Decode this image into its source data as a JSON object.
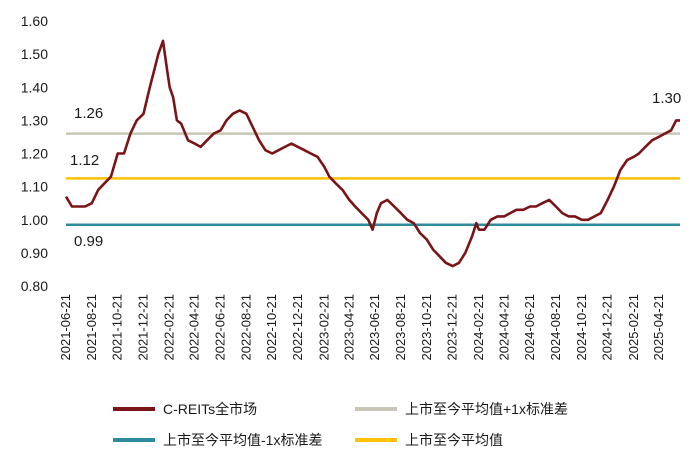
{
  "chart_data": {
    "type": "line",
    "ylim": [
      0.8,
      1.6
    ],
    "yticks": [
      "0.80",
      "0.90",
      "1.00",
      "1.10",
      "1.20",
      "1.30",
      "1.40",
      "1.50",
      "1.60"
    ],
    "xticks": [
      "2021-06-21",
      "2021-08-21",
      "2021-10-21",
      "2021-12-21",
      "2022-02-21",
      "2022-04-21",
      "2022-06-21",
      "2022-08-21",
      "2022-10-21",
      "2022-12-21",
      "2023-02-21",
      "2023-04-21",
      "2023-06-21",
      "2023-08-21",
      "2023-10-21",
      "2023-12-21",
      "2024-02-21",
      "2024-04-21",
      "2024-06-21",
      "2024-08-21",
      "2024-10-21",
      "2024-12-21",
      "2025-02-21",
      "2025-04-21"
    ],
    "x_range": [
      "2021-06-21",
      "2025-06-10"
    ],
    "grid": false,
    "legend_position": "bottom",
    "series": [
      {
        "name": "C-REITs全市场",
        "color": "#7b1416",
        "points": [
          [
            "2021-06-21",
            1.07
          ],
          [
            "2021-07-05",
            1.04
          ],
          [
            "2021-07-20",
            1.04
          ],
          [
            "2021-08-05",
            1.04
          ],
          [
            "2021-08-21",
            1.05
          ],
          [
            "2021-09-05",
            1.09
          ],
          [
            "2021-09-20",
            1.11
          ],
          [
            "2021-10-05",
            1.13
          ],
          [
            "2021-10-21",
            1.2
          ],
          [
            "2021-11-05",
            1.2
          ],
          [
            "2021-11-20",
            1.26
          ],
          [
            "2021-12-05",
            1.3
          ],
          [
            "2021-12-21",
            1.32
          ],
          [
            "2022-01-05",
            1.4
          ],
          [
            "2022-01-15",
            1.45
          ],
          [
            "2022-01-25",
            1.5
          ],
          [
            "2022-02-05",
            1.54
          ],
          [
            "2022-02-15",
            1.45
          ],
          [
            "2022-02-21",
            1.4
          ],
          [
            "2022-03-01",
            1.37
          ],
          [
            "2022-03-10",
            1.3
          ],
          [
            "2022-03-20",
            1.29
          ],
          [
            "2022-04-05",
            1.24
          ],
          [
            "2022-04-21",
            1.23
          ],
          [
            "2022-05-05",
            1.22
          ],
          [
            "2022-05-20",
            1.24
          ],
          [
            "2022-06-05",
            1.26
          ],
          [
            "2022-06-21",
            1.27
          ],
          [
            "2022-07-05",
            1.3
          ],
          [
            "2022-07-20",
            1.32
          ],
          [
            "2022-08-05",
            1.33
          ],
          [
            "2022-08-21",
            1.32
          ],
          [
            "2022-09-05",
            1.28
          ],
          [
            "2022-09-20",
            1.24
          ],
          [
            "2022-10-05",
            1.21
          ],
          [
            "2022-10-21",
            1.2
          ],
          [
            "2022-11-05",
            1.21
          ],
          [
            "2022-11-20",
            1.22
          ],
          [
            "2022-12-05",
            1.23
          ],
          [
            "2022-12-21",
            1.22
          ],
          [
            "2023-01-05",
            1.21
          ],
          [
            "2023-01-20",
            1.2
          ],
          [
            "2023-02-05",
            1.19
          ],
          [
            "2023-02-21",
            1.16
          ],
          [
            "2023-03-05",
            1.13
          ],
          [
            "2023-03-20",
            1.11
          ],
          [
            "2023-04-05",
            1.09
          ],
          [
            "2023-04-21",
            1.06
          ],
          [
            "2023-05-05",
            1.04
          ],
          [
            "2023-05-20",
            1.02
          ],
          [
            "2023-06-05",
            1.0
          ],
          [
            "2023-06-15",
            0.97
          ],
          [
            "2023-06-25",
            1.02
          ],
          [
            "2023-07-05",
            1.05
          ],
          [
            "2023-07-20",
            1.06
          ],
          [
            "2023-08-05",
            1.04
          ],
          [
            "2023-08-21",
            1.02
          ],
          [
            "2023-09-05",
            1.0
          ],
          [
            "2023-09-20",
            0.99
          ],
          [
            "2023-10-05",
            0.96
          ],
          [
            "2023-10-21",
            0.94
          ],
          [
            "2023-11-05",
            0.91
          ],
          [
            "2023-11-20",
            0.89
          ],
          [
            "2023-12-05",
            0.87
          ],
          [
            "2023-12-21",
            0.86
          ],
          [
            "2024-01-05",
            0.87
          ],
          [
            "2024-01-20",
            0.9
          ],
          [
            "2024-02-05",
            0.95
          ],
          [
            "2024-02-15",
            0.99
          ],
          [
            "2024-02-21",
            0.97
          ],
          [
            "2024-03-05",
            0.97
          ],
          [
            "2024-03-20",
            1.0
          ],
          [
            "2024-04-05",
            1.01
          ],
          [
            "2024-04-21",
            1.01
          ],
          [
            "2024-05-05",
            1.02
          ],
          [
            "2024-05-20",
            1.03
          ],
          [
            "2024-06-05",
            1.03
          ],
          [
            "2024-06-21",
            1.04
          ],
          [
            "2024-07-05",
            1.04
          ],
          [
            "2024-07-20",
            1.05
          ],
          [
            "2024-08-05",
            1.06
          ],
          [
            "2024-08-21",
            1.04
          ],
          [
            "2024-09-05",
            1.02
          ],
          [
            "2024-09-20",
            1.01
          ],
          [
            "2024-10-05",
            1.01
          ],
          [
            "2024-10-21",
            1.0
          ],
          [
            "2024-11-05",
            1.0
          ],
          [
            "2024-11-20",
            1.01
          ],
          [
            "2024-12-05",
            1.02
          ],
          [
            "2024-12-21",
            1.06
          ],
          [
            "2025-01-05",
            1.1
          ],
          [
            "2025-01-20",
            1.15
          ],
          [
            "2025-02-05",
            1.18
          ],
          [
            "2025-02-21",
            1.19
          ],
          [
            "2025-03-05",
            1.2
          ],
          [
            "2025-03-20",
            1.22
          ],
          [
            "2025-04-05",
            1.24
          ],
          [
            "2025-04-21",
            1.25
          ],
          [
            "2025-05-05",
            1.26
          ],
          [
            "2025-05-20",
            1.27
          ],
          [
            "2025-06-01",
            1.3
          ],
          [
            "2025-06-10",
            1.3
          ]
        ]
      },
      {
        "name": "上市至今平均值+1x标准差",
        "color": "#c8c7b5",
        "value": 1.26
      },
      {
        "name": "上市至今平均值-1x标准差",
        "color": "#2e8b9a",
        "value": 0.985
      },
      {
        "name": "上市至今平均值",
        "color": "#ffc000",
        "value": 1.125
      }
    ],
    "annotations": [
      "1.26",
      "1.12",
      "0.99",
      "1.30"
    ]
  }
}
